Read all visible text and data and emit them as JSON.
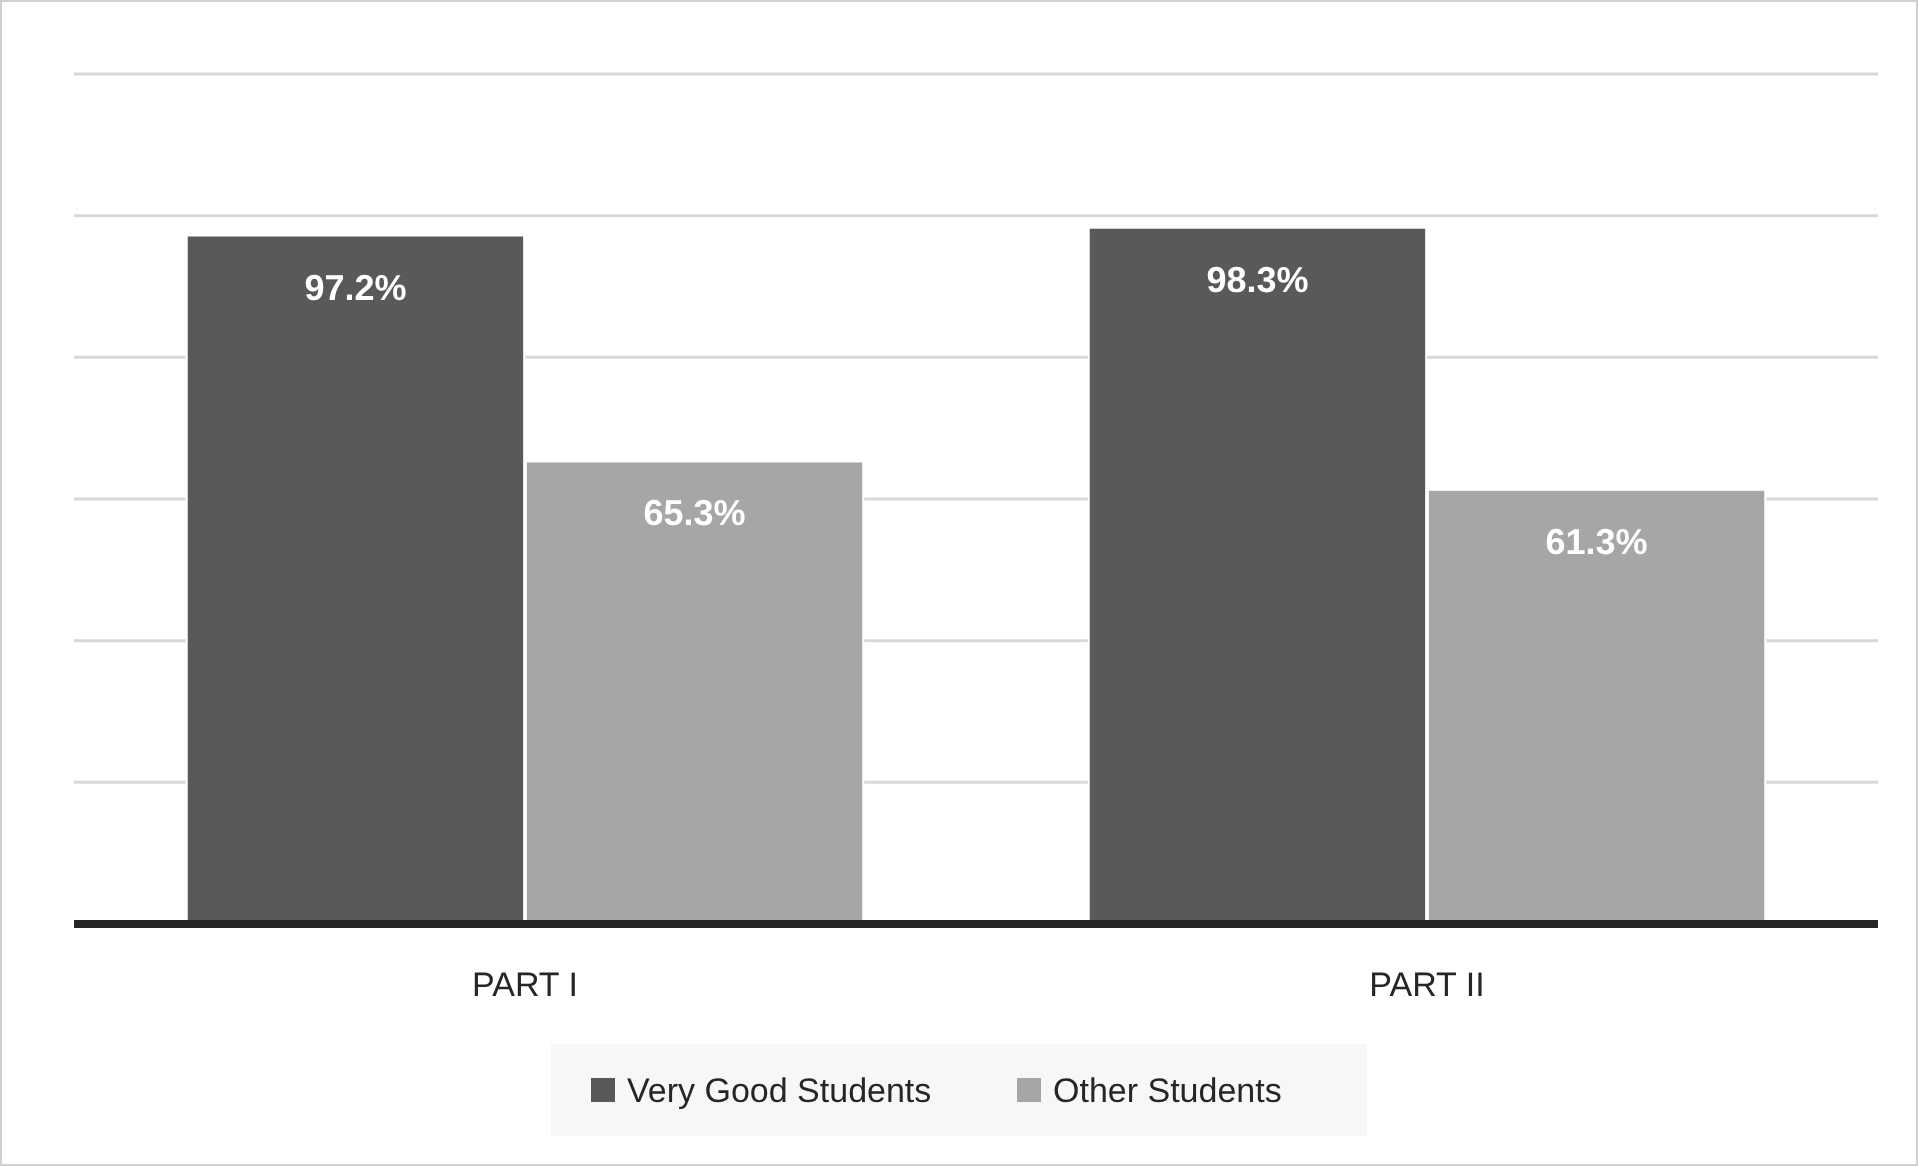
{
  "chart_data": {
    "type": "bar",
    "categories": [
      "PART I",
      "PART II"
    ],
    "series": [
      {
        "name": "Very Good Students",
        "color": "#595959",
        "values": [
          97.2,
          98.3
        ],
        "value_labels": [
          "97.2%",
          "98.3%"
        ]
      },
      {
        "name": "Other Students",
        "color": "#a6a6a6",
        "values": [
          65.3,
          61.3
        ],
        "value_labels": [
          "65.3%",
          "61.3%"
        ]
      }
    ],
    "ylim": [
      0,
      120
    ],
    "yticks": [
      {
        "value": 0,
        "label": null
      },
      {
        "value": 20,
        "label": null
      },
      {
        "value": 40,
        "label": null
      },
      {
        "value": 60,
        "label": null
      },
      {
        "value": 80,
        "label": null
      },
      {
        "value": 100,
        "label": null
      },
      {
        "value": 120,
        "label": null
      }
    ],
    "grid": "y",
    "legend": "bottom",
    "tick_labels": "x"
  }
}
